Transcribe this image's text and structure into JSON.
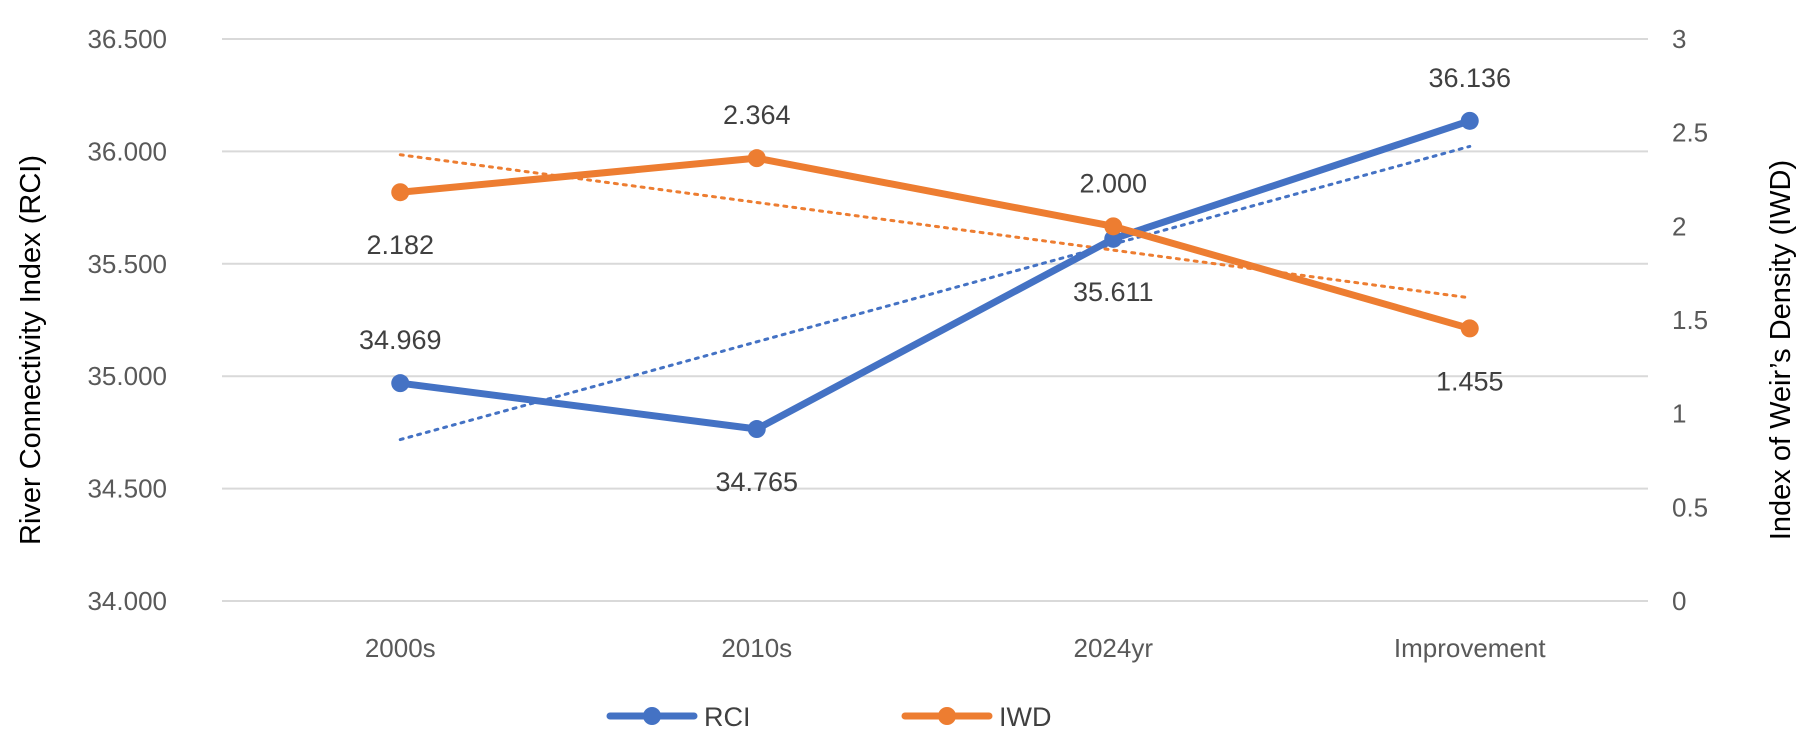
{
  "chart_data": {
    "type": "line",
    "categories": [
      "2000s",
      "2010s",
      "2024yr",
      "Improvement"
    ],
    "series": [
      {
        "name": "RCI",
        "axis": "left",
        "color": "#4472C4",
        "values": [
          34.969,
          34.765,
          35.611,
          36.136
        ],
        "labels": [
          "34.969",
          "34.765",
          "35.611",
          "36.136"
        ],
        "label_position": [
          "above",
          "below",
          "below",
          "above"
        ],
        "trendline": "linear"
      },
      {
        "name": "IWD",
        "axis": "right",
        "color": "#ED7D31",
        "values": [
          2.182,
          2.364,
          2.0,
          1.455
        ],
        "labels": [
          "2.182",
          "2.364",
          "2.000",
          "1.455"
        ],
        "label_position": [
          "below",
          "above",
          "above",
          "below"
        ],
        "trendline": "linear"
      }
    ],
    "y_left": {
      "label": "River Connectivity Index (RCI)",
      "range": [
        34.0,
        36.5
      ],
      "ticks": [
        "34.000",
        "34.500",
        "35.000",
        "35.500",
        "36.000",
        "36.500"
      ]
    },
    "y_right": {
      "label": "Index of Weir’s Density (IWD)",
      "range": [
        0,
        3
      ],
      "ticks": [
        "0",
        "0.5",
        "1",
        "1.5",
        "2",
        "2.5",
        "3"
      ]
    },
    "grid": true,
    "legend": "bottom-center"
  }
}
